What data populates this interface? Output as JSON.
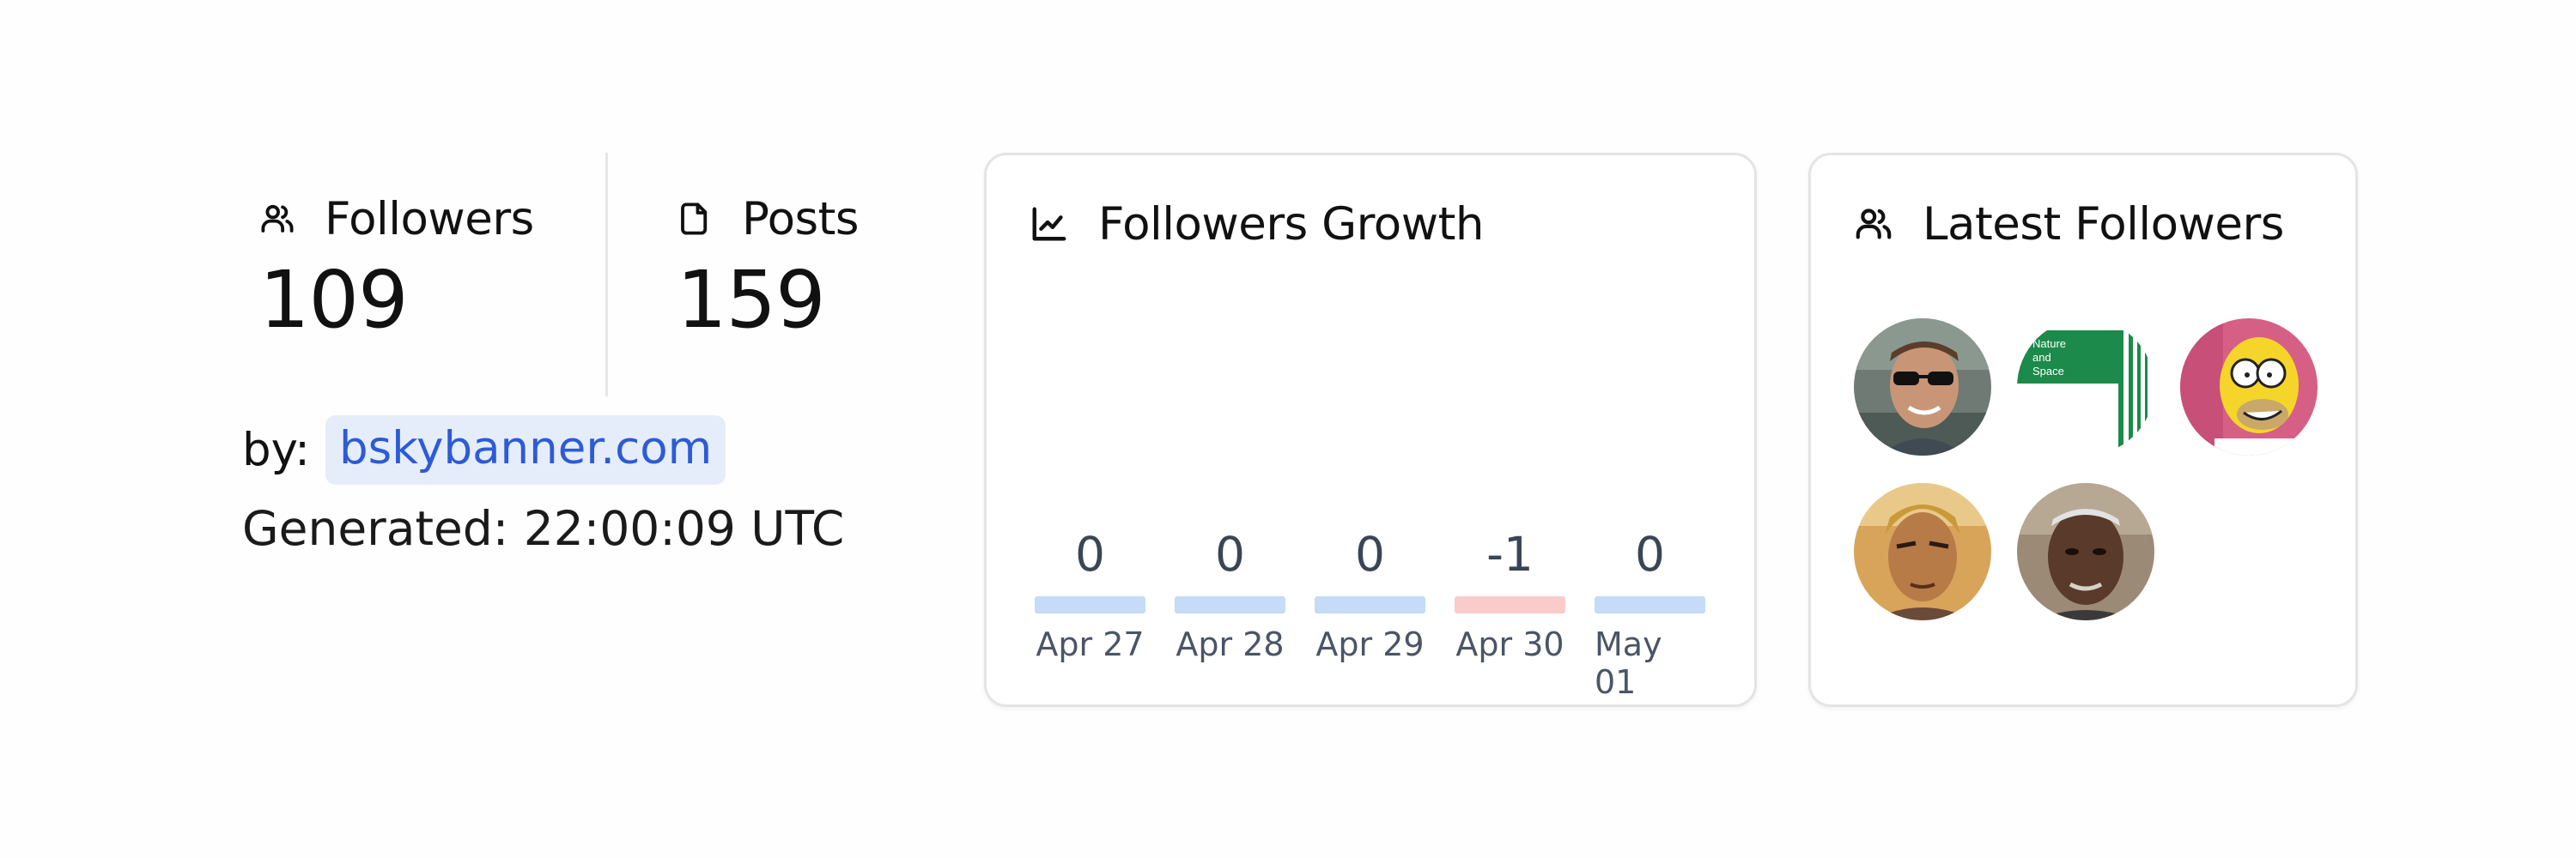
{
  "stats": {
    "followers": {
      "label": "Followers",
      "value": "109",
      "icon": "users-icon"
    },
    "posts": {
      "label": "Posts",
      "value": "159",
      "icon": "document-icon"
    }
  },
  "byline": {
    "prefix": "by:",
    "link": "bskybanner.com"
  },
  "generated": "Generated: 22:00:09 UTC",
  "growth": {
    "title": "Followers Growth",
    "icon": "line-chart-icon",
    "positive_color": "#c5dbf7",
    "negative_color": "#f9cccb"
  },
  "chart_data": {
    "type": "bar",
    "categories": [
      "Apr 27",
      "Apr 28",
      "Apr 29",
      "Apr 30",
      "May 01"
    ],
    "values": [
      0,
      0,
      0,
      -1,
      0
    ],
    "title": "Followers Growth"
  },
  "latest": {
    "title": "Latest Followers",
    "icon": "users-icon",
    "avatars": [
      {
        "name": "avatar-sunglasses-man"
      },
      {
        "name": "avatar-nature-and-space",
        "text_lines": [
          "Nature",
          "and",
          "Space"
        ]
      },
      {
        "name": "avatar-cartoon-character"
      },
      {
        "name": "avatar-anime-man"
      },
      {
        "name": "avatar-older-man"
      }
    ]
  }
}
